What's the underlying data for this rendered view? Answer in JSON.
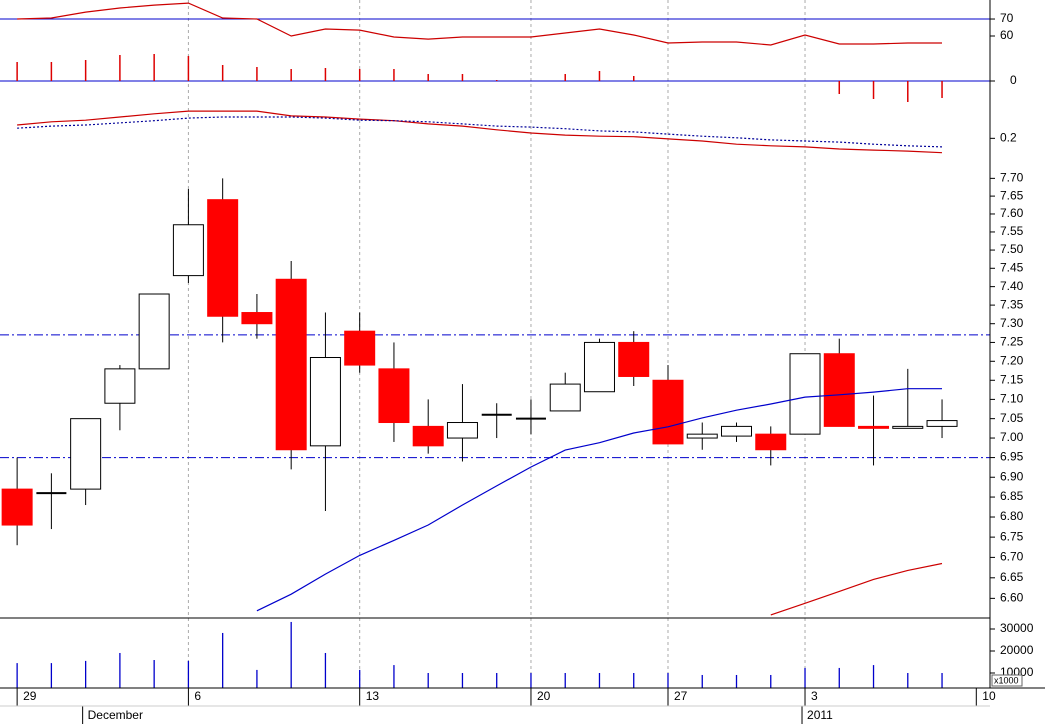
{
  "chart_data": [
    {
      "type": "line",
      "ylim": [
        50,
        81.2
      ],
      "yticks": [
        60,
        70
      ],
      "reference_lines": [
        70
      ],
      "reference_color": "#0000cc",
      "series": [
        {
          "color": "#cc0000",
          "values": [
            70,
            70.6,
            74.1,
            76.5,
            78.2,
            79.4,
            70.6,
            70,
            60,
            64.1,
            63.5,
            59.4,
            58.2,
            59.4,
            59.4,
            59.4,
            61.8,
            64.1,
            60.6,
            55.9,
            56.5,
            56.5,
            54.7,
            60.6,
            55.3,
            55.3,
            55.9,
            55.9
          ]
        }
      ],
      "histogram": {
        "color": "#dd0000",
        "ylim": [
          -30,
          30
        ],
        "yticks": [
          0
        ],
        "baseline_color": "#0000cc",
        "values": [
          19,
          19,
          21,
          26,
          27,
          25,
          16,
          14,
          12,
          13,
          12,
          12,
          7,
          7,
          1,
          0,
          7,
          10,
          5,
          0,
          0,
          0,
          0,
          0,
          -13,
          -18,
          -21,
          -17
        ]
      }
    },
    {
      "type": "line",
      "ylim": [
        0.15,
        0.3
      ],
      "yticks": [
        0.2
      ],
      "series": [
        {
          "color": "#cc0000",
          "dash": "solid",
          "values": [
            0.225,
            0.231,
            0.234,
            0.24,
            0.246,
            0.251,
            0.251,
            0.251,
            0.242,
            0.24,
            0.236,
            0.233,
            0.227,
            0.223,
            0.216,
            0.21,
            0.206,
            0.204,
            0.203,
            0.199,
            0.195,
            0.189,
            0.186,
            0.184,
            0.18,
            0.178,
            0.176,
            0.173
          ]
        },
        {
          "color": "#000099",
          "dash": "dotted",
          "values": [
            0.219,
            0.223,
            0.225,
            0.229,
            0.233,
            0.238,
            0.24,
            0.24,
            0.24,
            0.238,
            0.234,
            0.233,
            0.231,
            0.227,
            0.223,
            0.221,
            0.218,
            0.214,
            0.212,
            0.208,
            0.204,
            0.201,
            0.197,
            0.195,
            0.193,
            0.189,
            0.186,
            0.184
          ]
        }
      ]
    },
    {
      "type": "candlestick",
      "log": true,
      "ylim": [
        6.555,
        7.735
      ],
      "yticks": [
        {
          "value": 7.7,
          "label": "7.70"
        },
        7.65,
        {
          "value": 7.6,
          "label": "7.60"
        },
        7.55,
        {
          "value": 7.5,
          "label": "7.50"
        },
        7.45,
        {
          "value": 7.4,
          "label": "7.40"
        },
        7.35,
        {
          "value": 7.3,
          "label": "7.30"
        },
        7.25,
        {
          "value": 7.2,
          "label": "7.20"
        },
        7.15,
        {
          "value": 7.1,
          "label": "7.10"
        },
        7.05,
        {
          "value": 7,
          "label": "7.00"
        },
        6.95,
        {
          "value": 6.9,
          "label": "6.90"
        },
        6.85,
        {
          "value": 6.8,
          "label": "6.80"
        },
        6.75,
        {
          "value": 6.7,
          "label": "6.70"
        },
        6.65,
        {
          "value": 6.6,
          "label": "6.60"
        }
      ],
      "up_color": "#ffffff",
      "down_color": "#ff0000",
      "open": [
        6.87,
        6.86,
        6.87,
        7.09,
        7.18,
        7.43,
        7.64,
        7.33,
        7.42,
        6.98,
        7.28,
        7.18,
        7.03,
        7.0,
        7.06,
        7.05,
        7.07,
        7.12,
        7.25,
        7.15,
        7.0,
        7.005,
        7.01,
        7.01,
        7.22,
        7.03,
        7.025,
        7.03
      ],
      "high": [
        6.95,
        6.91,
        7.05,
        7.19,
        7.38,
        7.67,
        7.7,
        7.38,
        7.47,
        7.33,
        7.33,
        7.25,
        7.1,
        7.14,
        7.09,
        7.1,
        7.17,
        7.26,
        7.28,
        7.19,
        7.04,
        7.04,
        7.03,
        7.22,
        7.26,
        7.11,
        7.18,
        7.1
      ],
      "low": [
        6.73,
        6.77,
        6.83,
        7.02,
        7.18,
        7.41,
        7.25,
        7.26,
        6.92,
        6.815,
        7.17,
        6.99,
        6.96,
        6.94,
        7.0,
        7.01,
        7.07,
        7.12,
        7.135,
        6.985,
        6.97,
        6.99,
        6.93,
        7.01,
        7.03,
        6.93,
        7.025,
        7.0
      ],
      "close": [
        6.78,
        6.86,
        7.05,
        7.18,
        7.38,
        7.57,
        7.32,
        7.3,
        6.97,
        7.21,
        7.19,
        7.04,
        6.98,
        7.04,
        7.06,
        7.05,
        7.14,
        7.25,
        7.16,
        6.985,
        7.01,
        7.03,
        6.97,
        7.22,
        7.03,
        7.025,
        7.03,
        7.045
      ],
      "series": [
        {
          "color": "#0000cc",
          "values": [
            null,
            null,
            null,
            null,
            null,
            null,
            null,
            6.57,
            6.61,
            6.659,
            6.705,
            6.742,
            6.78,
            6.83,
            6.878,
            6.926,
            6.969,
            6.988,
            7.013,
            7.029,
            7.052,
            7.072,
            7.088,
            7.106,
            7.112,
            7.119,
            7.128,
            7.128
          ]
        },
        {
          "color": "#cc0000",
          "values": [
            null,
            null,
            null,
            null,
            null,
            null,
            null,
            null,
            null,
            null,
            null,
            null,
            null,
            null,
            null,
            null,
            null,
            null,
            null,
            null,
            null,
            null,
            6.56,
            6.588,
            6.617,
            6.646,
            6.668,
            6.685
          ]
        }
      ],
      "reference_lines": [
        7.27,
        6.95
      ],
      "reference_color": "#0000cc"
    },
    {
      "type": "bar",
      "color": "#0000cc",
      "ylim": [
        3180,
        34090
      ],
      "yticks": [
        10000,
        20000,
        30000
      ],
      "axis_label": "x1000",
      "values": [
        14500,
        14500,
        15500,
        19100,
        15900,
        15500,
        28200,
        11400,
        33200,
        19100,
        11400,
        13600,
        10000,
        10000,
        10000,
        10000,
        10000,
        10000,
        10000,
        10000,
        9100,
        9100,
        9100,
        12300,
        12300,
        13600,
        10000,
        10000
      ],
      "xlim": [
        -0.5,
        28.4
      ],
      "xticks": [
        {
          "value": 0,
          "label": "29"
        },
        {
          "value": 5,
          "label": "6"
        },
        {
          "value": 10,
          "label": "13"
        },
        {
          "value": 15,
          "label": "20"
        },
        {
          "value": 19,
          "label": "27"
        },
        {
          "value": 23,
          "label": "3"
        },
        {
          "value": 28,
          "label": "10"
        }
      ],
      "month_labels": [
        {
          "value": 2,
          "label": "December"
        },
        {
          "value": 23,
          "label": "2011"
        }
      ]
    }
  ]
}
